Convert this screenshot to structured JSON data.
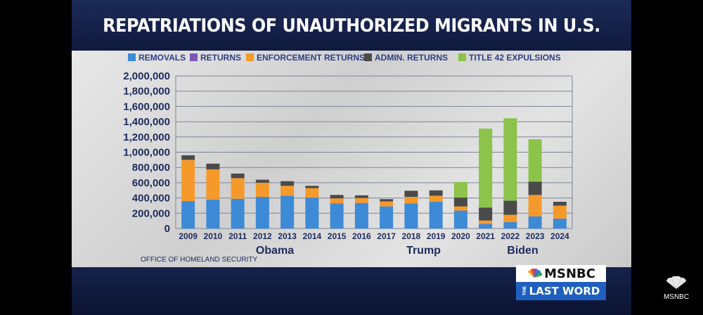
{
  "chart_data": {
    "type": "bar",
    "stacked": true,
    "title": "REPATRIATIONS OF UNAUTHORIZED MIGRANTS IN U.S.",
    "categories": [
      "2009",
      "2010",
      "2011",
      "2012",
      "2013",
      "2014",
      "2015",
      "2016",
      "2017",
      "2018",
      "2019",
      "2020",
      "2021",
      "2022",
      "2023",
      "2024"
    ],
    "series": [
      {
        "name": "REMOVALS",
        "color": "#3d8ad6",
        "values": [
          360000,
          380000,
          390000,
          415000,
          430000,
          405000,
          330000,
          335000,
          290000,
          330000,
          350000,
          235000,
          60000,
          85000,
          160000,
          130000
        ]
      },
      {
        "name": "RETURNS",
        "color": "#7b58b8",
        "values": [
          0,
          0,
          0,
          0,
          0,
          0,
          0,
          0,
          0,
          0,
          0,
          0,
          0,
          0,
          0,
          0
        ]
      },
      {
        "name": "ENFORCEMENT RETURNS",
        "color": "#f59a2a",
        "values": [
          540000,
          395000,
          270000,
          185000,
          130000,
          125000,
          65000,
          65000,
          65000,
          85000,
          80000,
          55000,
          45000,
          95000,
          280000,
          170000
        ]
      },
      {
        "name": "ADMIN. RETURNS",
        "color": "#4a4a4a",
        "values": [
          60000,
          75000,
          60000,
          40000,
          60000,
          30000,
          45000,
          35000,
          30000,
          80000,
          70000,
          115000,
          170000,
          185000,
          175000,
          50000
        ]
      },
      {
        "name": "TITLE 42 EXPULSIONS",
        "color": "#8cc34a",
        "values": [
          0,
          0,
          0,
          0,
          0,
          0,
          0,
          0,
          0,
          0,
          0,
          205000,
          1035000,
          1080000,
          555000,
          0
        ]
      }
    ],
    "ylim": [
      0,
      2000000
    ],
    "yticks": [
      "2,000,000",
      "1,800,000",
      "1,600,000",
      "1,400,000",
      "1,200,000",
      "1,000,000",
      "800,000",
      "600,000",
      "400,000",
      "200,000",
      "0"
    ],
    "ytick_values": [
      2000000,
      1800000,
      1600000,
      1400000,
      1200000,
      1000000,
      800000,
      600000,
      400000,
      200000,
      0
    ],
    "grid": true,
    "legend_position": "top",
    "annotations": [
      {
        "text": "Obama",
        "from": "2009",
        "to": "2016"
      },
      {
        "text": "Trump",
        "from": "2017",
        "to": "2020"
      },
      {
        "text": "Biden",
        "from": "2021",
        "to": "2024"
      }
    ],
    "source": "OFFICE OF HOMELAND SECURITY"
  },
  "branding": {
    "logo_name": "MSNBC",
    "show_the": "THE",
    "show_name": "LAST WORD",
    "corner_name": "MSNBC"
  }
}
